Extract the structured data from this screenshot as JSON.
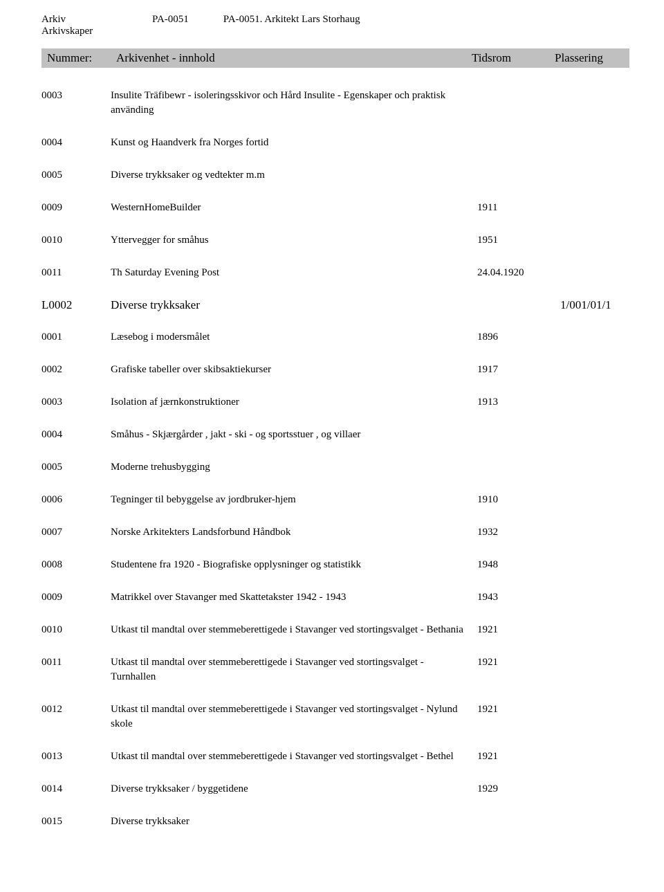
{
  "header": {
    "arkiv_label": "Arkiv",
    "arkiv_code": "PA-0051",
    "arkiv_title": "PA-0051. Arkitekt Lars Storhaug",
    "arkivskaper_label": "Arkivskaper"
  },
  "columns": {
    "nummer": "Nummer:",
    "innhold": "Arkivenhet - innhold",
    "tidsrom": "Tidsrom",
    "plassering": "Plassering"
  },
  "block1": [
    {
      "id": "0003",
      "desc": "Insulite Träfibewr - isoleringsskivor och Hård Insulite - Egenskaper och praktisk använding",
      "date": ""
    },
    {
      "id": "0004",
      "desc": "Kunst og Haandverk fra Norges fortid",
      "date": ""
    },
    {
      "id": "0005",
      "desc": "Diverse trykksaker og vedtekter m.m",
      "date": ""
    },
    {
      "id": "0009",
      "desc": "WesternHomeBuilder",
      "date": "1911"
    },
    {
      "id": "0010",
      "desc": "Yttervegger for småhus",
      "date": "1951"
    },
    {
      "id": "0011",
      "desc": "Th Saturday Evening Post",
      "date": "24.04.1920"
    }
  ],
  "section": {
    "id": "L0002",
    "desc": "Diverse trykksaker",
    "place": "1/001/01/1"
  },
  "block2": [
    {
      "id": "0001",
      "desc": "Læsebog i modersmålet",
      "date": "1896"
    },
    {
      "id": "0002",
      "desc": "Grafiske tabeller over skibsaktiekurser",
      "date": "1917"
    },
    {
      "id": "0003",
      "desc": "Isolation af jærnkonstruktioner",
      "date": "1913"
    },
    {
      "id": "0004",
      "desc": "Småhus  - Skjærgårder , jakt - ski - og sportsstuer , og villaer",
      "date": ""
    },
    {
      "id": "0005",
      "desc": "Moderne trehusbygging",
      "date": ""
    },
    {
      "id": "0006",
      "desc": "Tegninger til bebyggelse av jordbruker-hjem",
      "date": "1910"
    },
    {
      "id": "0007",
      "desc": "Norske Arkitekters Landsforbund Håndbok",
      "date": "1932"
    },
    {
      "id": "0008",
      "desc": "Studentene fra 1920 - Biografiske opplysninger og statistikk",
      "date": "1948"
    },
    {
      "id": "0009",
      "desc": "Matrikkel over Stavanger med Skattetakster 1942 - 1943",
      "date": "1943"
    },
    {
      "id": "0010",
      "desc": "Utkast til mandtal over stemmeberettigede i Stavanger ved stortingsvalget - Bethania",
      "date": "1921"
    },
    {
      "id": "0011",
      "desc": "Utkast til mandtal over stemmeberettigede i Stavanger ved stortingsvalget - Turnhallen",
      "date": "1921"
    },
    {
      "id": "0012",
      "desc": "Utkast til mandtal over stemmeberettigede i Stavanger ved stortingsvalget - Nylund skole",
      "date": "1921"
    },
    {
      "id": "0013",
      "desc": "Utkast til mandtal over stemmeberettigede i Stavanger ved stortingsvalget - Bethel",
      "date": "1921"
    },
    {
      "id": "0014",
      "desc": "Diverse trykksaker / byggetidene",
      "date": "1929"
    },
    {
      "id": "0015",
      "desc": "Diverse trykksaker",
      "date": ""
    }
  ]
}
